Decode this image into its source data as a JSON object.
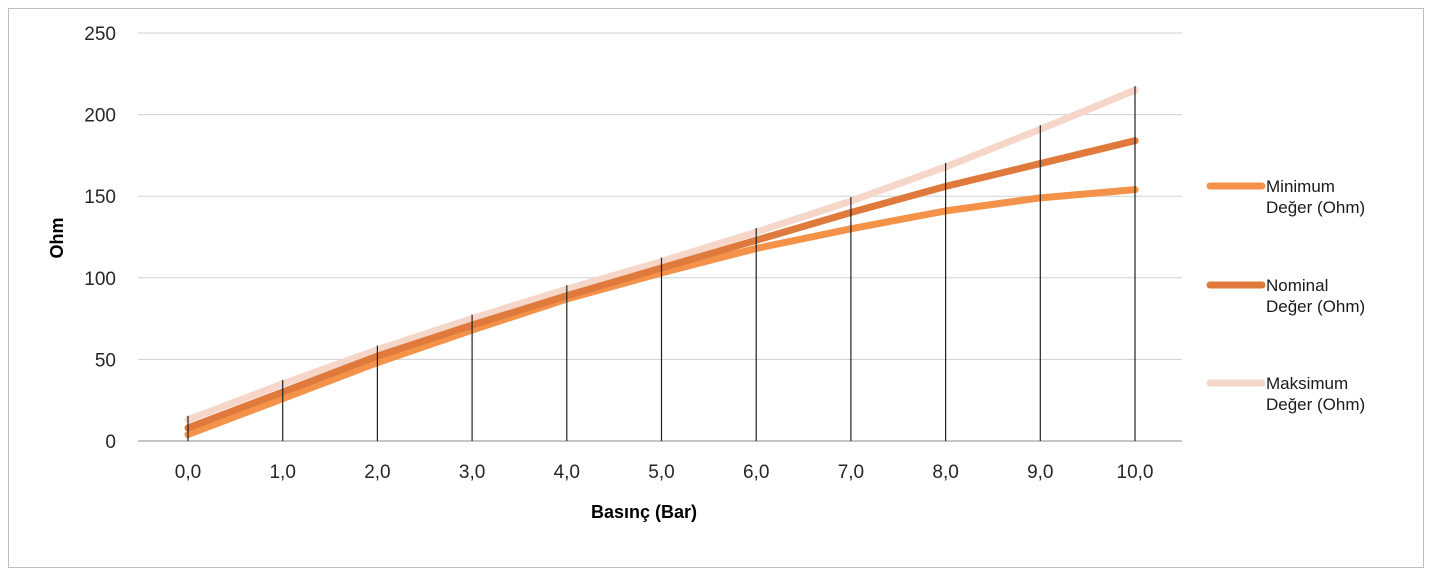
{
  "chart_data": {
    "type": "line",
    "xlabel": "Basınç (Bar)",
    "ylabel": "Ohm",
    "x": [
      0,
      1,
      2,
      3,
      4,
      5,
      6,
      7,
      8,
      9,
      10
    ],
    "categories": [
      "0,0",
      "1,0",
      "2,0",
      "3,0",
      "4,0",
      "5,0",
      "6,0",
      "7,0",
      "8,0",
      "9,0",
      "10,0"
    ],
    "yticks": [
      "0",
      "50",
      "100",
      "150",
      "200",
      "250"
    ],
    "ylim": [
      0,
      250
    ],
    "grid": "horizontal",
    "legend_position": "right",
    "series": [
      {
        "name": "Minimum Değer (Ohm)",
        "name_lines": [
          "Minimum",
          "Değer (Ohm)"
        ],
        "color": "#f4924a",
        "values": [
          4,
          26,
          48,
          68,
          87,
          103,
          118,
          130,
          141,
          149,
          154
        ]
      },
      {
        "name": "Nominal Değer (Ohm)",
        "name_lines": [
          "Nominal",
          "Değer (Ohm)"
        ],
        "color": "#df7a3c",
        "values": [
          8,
          30,
          52,
          71,
          89,
          106,
          123,
          140,
          156,
          170,
          184
        ]
      },
      {
        "name": "Maksimum Değer (Ohm)",
        "name_lines": [
          "Maksimum",
          "Değer (Ohm)"
        ],
        "color": "#f5d6c8",
        "values": [
          13,
          35,
          56,
          75,
          93,
          110,
          128,
          147,
          168,
          191,
          215
        ]
      }
    ]
  }
}
